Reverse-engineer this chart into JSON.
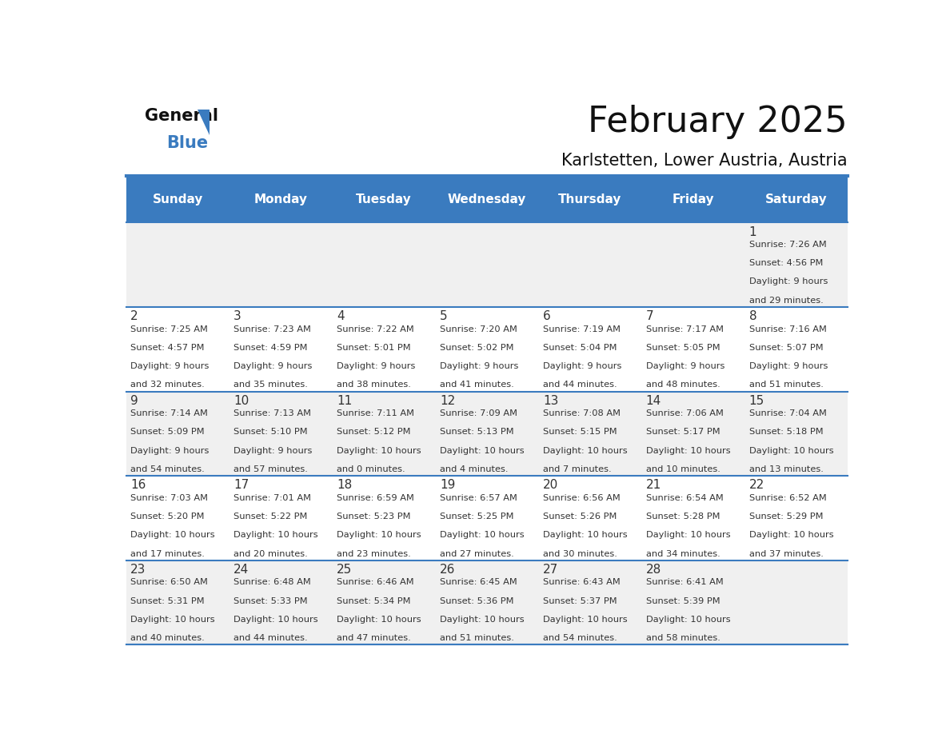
{
  "title": "February 2025",
  "subtitle": "Karlstetten, Lower Austria, Austria",
  "days_of_week": [
    "Sunday",
    "Monday",
    "Tuesday",
    "Wednesday",
    "Thursday",
    "Friday",
    "Saturday"
  ],
  "header_bg": "#3a7bbf",
  "header_text": "#ffffff",
  "cell_bg_light": "#f0f0f0",
  "cell_bg_white": "#ffffff",
  "border_color": "#3a7bbf",
  "text_color": "#333333",
  "day_number_color": "#333333",
  "calendar_data": [
    {
      "day": 1,
      "col": 6,
      "row": 0,
      "sunrise": "7:26 AM",
      "sunset": "4:56 PM",
      "daylight_hours": 9,
      "daylight_minutes": 29
    },
    {
      "day": 2,
      "col": 0,
      "row": 1,
      "sunrise": "7:25 AM",
      "sunset": "4:57 PM",
      "daylight_hours": 9,
      "daylight_minutes": 32
    },
    {
      "day": 3,
      "col": 1,
      "row": 1,
      "sunrise": "7:23 AM",
      "sunset": "4:59 PM",
      "daylight_hours": 9,
      "daylight_minutes": 35
    },
    {
      "day": 4,
      "col": 2,
      "row": 1,
      "sunrise": "7:22 AM",
      "sunset": "5:01 PM",
      "daylight_hours": 9,
      "daylight_minutes": 38
    },
    {
      "day": 5,
      "col": 3,
      "row": 1,
      "sunrise": "7:20 AM",
      "sunset": "5:02 PM",
      "daylight_hours": 9,
      "daylight_minutes": 41
    },
    {
      "day": 6,
      "col": 4,
      "row": 1,
      "sunrise": "7:19 AM",
      "sunset": "5:04 PM",
      "daylight_hours": 9,
      "daylight_minutes": 44
    },
    {
      "day": 7,
      "col": 5,
      "row": 1,
      "sunrise": "7:17 AM",
      "sunset": "5:05 PM",
      "daylight_hours": 9,
      "daylight_minutes": 48
    },
    {
      "day": 8,
      "col": 6,
      "row": 1,
      "sunrise": "7:16 AM",
      "sunset": "5:07 PM",
      "daylight_hours": 9,
      "daylight_minutes": 51
    },
    {
      "day": 9,
      "col": 0,
      "row": 2,
      "sunrise": "7:14 AM",
      "sunset": "5:09 PM",
      "daylight_hours": 9,
      "daylight_minutes": 54
    },
    {
      "day": 10,
      "col": 1,
      "row": 2,
      "sunrise": "7:13 AM",
      "sunset": "5:10 PM",
      "daylight_hours": 9,
      "daylight_minutes": 57
    },
    {
      "day": 11,
      "col": 2,
      "row": 2,
      "sunrise": "7:11 AM",
      "sunset": "5:12 PM",
      "daylight_hours": 10,
      "daylight_minutes": 0
    },
    {
      "day": 12,
      "col": 3,
      "row": 2,
      "sunrise": "7:09 AM",
      "sunset": "5:13 PM",
      "daylight_hours": 10,
      "daylight_minutes": 4
    },
    {
      "day": 13,
      "col": 4,
      "row": 2,
      "sunrise": "7:08 AM",
      "sunset": "5:15 PM",
      "daylight_hours": 10,
      "daylight_minutes": 7
    },
    {
      "day": 14,
      "col": 5,
      "row": 2,
      "sunrise": "7:06 AM",
      "sunset": "5:17 PM",
      "daylight_hours": 10,
      "daylight_minutes": 10
    },
    {
      "day": 15,
      "col": 6,
      "row": 2,
      "sunrise": "7:04 AM",
      "sunset": "5:18 PM",
      "daylight_hours": 10,
      "daylight_minutes": 13
    },
    {
      "day": 16,
      "col": 0,
      "row": 3,
      "sunrise": "7:03 AM",
      "sunset": "5:20 PM",
      "daylight_hours": 10,
      "daylight_minutes": 17
    },
    {
      "day": 17,
      "col": 1,
      "row": 3,
      "sunrise": "7:01 AM",
      "sunset": "5:22 PM",
      "daylight_hours": 10,
      "daylight_minutes": 20
    },
    {
      "day": 18,
      "col": 2,
      "row": 3,
      "sunrise": "6:59 AM",
      "sunset": "5:23 PM",
      "daylight_hours": 10,
      "daylight_minutes": 23
    },
    {
      "day": 19,
      "col": 3,
      "row": 3,
      "sunrise": "6:57 AM",
      "sunset": "5:25 PM",
      "daylight_hours": 10,
      "daylight_minutes": 27
    },
    {
      "day": 20,
      "col": 4,
      "row": 3,
      "sunrise": "6:56 AM",
      "sunset": "5:26 PM",
      "daylight_hours": 10,
      "daylight_minutes": 30
    },
    {
      "day": 21,
      "col": 5,
      "row": 3,
      "sunrise": "6:54 AM",
      "sunset": "5:28 PM",
      "daylight_hours": 10,
      "daylight_minutes": 34
    },
    {
      "day": 22,
      "col": 6,
      "row": 3,
      "sunrise": "6:52 AM",
      "sunset": "5:29 PM",
      "daylight_hours": 10,
      "daylight_minutes": 37
    },
    {
      "day": 23,
      "col": 0,
      "row": 4,
      "sunrise": "6:50 AM",
      "sunset": "5:31 PM",
      "daylight_hours": 10,
      "daylight_minutes": 40
    },
    {
      "day": 24,
      "col": 1,
      "row": 4,
      "sunrise": "6:48 AM",
      "sunset": "5:33 PM",
      "daylight_hours": 10,
      "daylight_minutes": 44
    },
    {
      "day": 25,
      "col": 2,
      "row": 4,
      "sunrise": "6:46 AM",
      "sunset": "5:34 PM",
      "daylight_hours": 10,
      "daylight_minutes": 47
    },
    {
      "day": 26,
      "col": 3,
      "row": 4,
      "sunrise": "6:45 AM",
      "sunset": "5:36 PM",
      "daylight_hours": 10,
      "daylight_minutes": 51
    },
    {
      "day": 27,
      "col": 4,
      "row": 4,
      "sunrise": "6:43 AM",
      "sunset": "5:37 PM",
      "daylight_hours": 10,
      "daylight_minutes": 54
    },
    {
      "day": 28,
      "col": 5,
      "row": 4,
      "sunrise": "6:41 AM",
      "sunset": "5:39 PM",
      "daylight_hours": 10,
      "daylight_minutes": 58
    }
  ],
  "num_rows": 5,
  "num_cols": 7,
  "logo_triangle_color": "#3a7bbf"
}
